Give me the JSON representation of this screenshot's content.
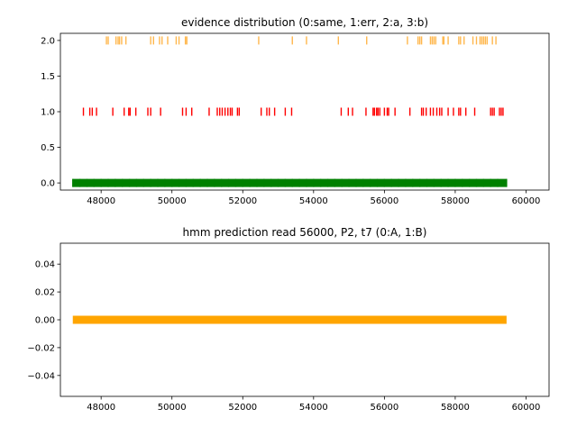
{
  "chart_data": [
    {
      "type": "scatter",
      "title": "evidence distribution (0:same, 1:err, 2:a, 3:b)",
      "xlabel": "",
      "ylabel": "",
      "xlim": [
        46850,
        60650
      ],
      "ylim": [
        -0.1,
        2.1
      ],
      "xticks": [
        48000,
        50000,
        52000,
        54000,
        56000,
        58000,
        60000
      ],
      "yticks": [
        0.0,
        0.5,
        1.0,
        1.5,
        2.0
      ],
      "ytick_labels": [
        "0.0",
        "0.5",
        "1.0",
        "1.5",
        "2.0"
      ],
      "grid": false,
      "marker": "|",
      "series": [
        {
          "y": 0,
          "color": "#008000",
          "x": [
            47200,
            47400,
            47600,
            47800,
            48000,
            48200,
            48400,
            48600,
            48800,
            49000,
            49200,
            49400,
            49600,
            49800,
            50000,
            50200,
            50400,
            50600,
            50800,
            51000,
            51200,
            51400,
            51600,
            51800,
            52000,
            52200,
            52400,
            52600,
            52800,
            53000,
            53200,
            53400,
            53600,
            53800,
            54000,
            54200,
            54400,
            54600,
            54800,
            55000,
            55200,
            55400,
            55600,
            55800,
            56000,
            56200,
            56400,
            56600,
            56800,
            57000,
            57200,
            57400,
            57600,
            57800,
            58000,
            58200,
            58400,
            58600,
            58800,
            59000,
            59200,
            59450
          ]
        },
        {
          "y": 1,
          "color": "#ff0000",
          "x": [
            47500,
            47680,
            47750,
            47870,
            48330,
            48650,
            48780,
            48820,
            48980,
            49320,
            49400,
            49680,
            50300,
            50400,
            50560,
            51050,
            51280,
            51350,
            51420,
            51500,
            51580,
            51650,
            51700,
            51850,
            51900,
            52520,
            52680,
            52750,
            52900,
            53200,
            53380,
            54780,
            54980,
            55100,
            55480,
            55680,
            55720,
            55780,
            55820,
            55870,
            56000,
            56080,
            56120,
            56300,
            56720,
            57050,
            57100,
            57180,
            57300,
            57380,
            57480,
            57560,
            57620,
            57800,
            57950,
            58100,
            58150,
            58300,
            58550,
            59000,
            59050,
            59100,
            59250,
            59300,
            59350
          ]
        },
        {
          "y": 2,
          "color": "#ffb74d",
          "x": [
            48150,
            48200,
            48420,
            48480,
            48520,
            48580,
            48700,
            49400,
            49480,
            49650,
            49720,
            49880,
            50120,
            50200,
            50380,
            50420,
            52450,
            53400,
            53800,
            54700,
            55500,
            56650,
            56950,
            57000,
            57050,
            57300,
            57350,
            57400,
            57450,
            57650,
            57680,
            57800,
            58100,
            58150,
            58250,
            58500,
            58600,
            58700,
            58750,
            58800,
            58850,
            58900,
            59050,
            59150
          ]
        }
      ]
    },
    {
      "type": "line",
      "title": "hmm prediction read 56000, P2, t7 (0:A, 1:B)",
      "xlabel": "",
      "ylabel": "",
      "xlim": [
        46850,
        60650
      ],
      "ylim": [
        -0.055,
        0.055
      ],
      "xticks": [
        48000,
        50000,
        52000,
        54000,
        56000,
        58000,
        60000
      ],
      "yticks": [
        -0.04,
        -0.02,
        0.0,
        0.02,
        0.04
      ],
      "ytick_labels": [
        "−0.04",
        "−0.02",
        "0.00",
        "0.02",
        "0.04"
      ],
      "grid": false,
      "series": [
        {
          "color": "#ffa500",
          "x": [
            47200,
            59450
          ],
          "y": [
            0,
            0
          ]
        }
      ]
    }
  ]
}
